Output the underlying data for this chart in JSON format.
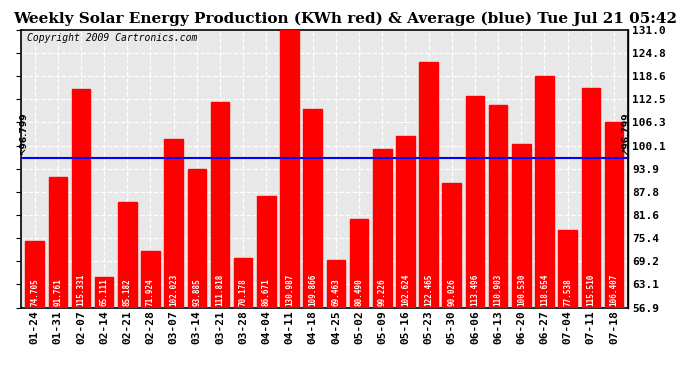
{
  "title": "Weekly Solar Energy Production (KWh red) & Average (blue) Tue Jul 21 05:42",
  "copyright": "Copyright 2009 Cartronics.com",
  "categories": [
    "01-24",
    "01-31",
    "02-07",
    "02-14",
    "02-21",
    "02-28",
    "03-07",
    "03-14",
    "03-21",
    "03-28",
    "04-04",
    "04-11",
    "04-18",
    "04-25",
    "05-02",
    "05-09",
    "05-16",
    "05-23",
    "05-30",
    "06-06",
    "06-13",
    "06-20",
    "06-27",
    "07-04",
    "07-11",
    "07-18"
  ],
  "values": [
    74.705,
    91.761,
    115.331,
    65.111,
    85.182,
    71.924,
    102.023,
    93.885,
    111.818,
    70.178,
    86.671,
    130.987,
    109.866,
    69.463,
    80.49,
    99.226,
    102.624,
    122.465,
    90.026,
    113.496,
    110.903,
    100.53,
    118.654,
    77.538,
    115.51,
    106.407
  ],
  "average": 96.799,
  "bar_color": "#FF0000",
  "avg_line_color": "#0000FF",
  "background_color": "#FFFFFF",
  "plot_bg_color": "#E8E8E8",
  "ylim_min": 56.9,
  "ylim_max": 131.0,
  "yticks": [
    56.9,
    63.1,
    69.2,
    75.4,
    81.6,
    87.8,
    93.9,
    100.1,
    106.3,
    112.5,
    118.6,
    124.8,
    131.0
  ],
  "title_fontsize": 11,
  "copyright_fontsize": 7,
  "bar_label_fontsize": 5.5,
  "tick_fontsize": 8,
  "avg_label": "96.799"
}
